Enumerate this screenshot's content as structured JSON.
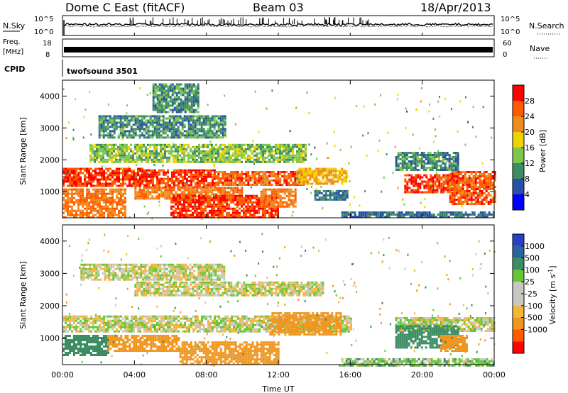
{
  "header": {
    "site": "Dome C East (fitACF)",
    "beam": "Beam 03",
    "date": "18/Apr/2013"
  },
  "sky_panel": {
    "left_label": "N.Sky",
    "right_label": "N.Search",
    "left_ticks": [
      "10^5",
      "10^0"
    ],
    "right_ticks": [
      "10^5",
      "10^0"
    ]
  },
  "freq_panel": {
    "left_label_1": "Freq.",
    "left_label_2": "[MHz]",
    "right_label": "Nave",
    "left_ticks": [
      "18",
      "8"
    ],
    "right_ticks": [
      "60",
      "0"
    ],
    "cpid_label": "CPID",
    "cpid_value": "twofsound 3501"
  },
  "x_axis": {
    "label": "Time UT",
    "ticks": [
      "00:00",
      "04:00",
      "08:00",
      "12:00",
      "16:00",
      "20:00",
      "00:00"
    ]
  },
  "colors": {
    "power_scale": [
      "#0000ff",
      "#2850a8",
      "#3c8c64",
      "#7cc84a",
      "#f0d200",
      "#f08c1e",
      "#ff5a00",
      "#ff0000"
    ],
    "velocity_scale": [
      "#ff0000",
      "#ff5a00",
      "#f0961e",
      "#f5b43c",
      "#c8c8c0",
      "#c8c8c0",
      "#64c832",
      "#3c8c64",
      "#2864a0",
      "#2840c8"
    ]
  },
  "chart_data": [
    {
      "type": "heatmap",
      "title": "",
      "xlabel": "",
      "ylabel": "Slant Range [km]",
      "yticks": [
        1000,
        2000,
        3000,
        4000
      ],
      "colorbar": {
        "label": "Power [dB]",
        "ticks": [
          "28",
          "24",
          "20",
          "16",
          "12",
          "8",
          "4"
        ]
      },
      "x_range_hours": [
        0,
        24
      ],
      "y_range_km": [
        180,
        4500
      ],
      "regions": [
        {
          "t0": 0.0,
          "t1": 4.5,
          "r0": 1150,
          "r1": 1750,
          "power": 28
        },
        {
          "t0": 0.0,
          "t1": 3.5,
          "r0": 200,
          "r1": 1100,
          "power": 24
        },
        {
          "t0": 4.5,
          "t1": 8.5,
          "r0": 1150,
          "r1": 1700,
          "power": 28
        },
        {
          "t0": 4.0,
          "t1": 10.0,
          "r0": 800,
          "r1": 1150,
          "power": 24
        },
        {
          "t0": 6.0,
          "t1": 12.0,
          "r0": 200,
          "r1": 900,
          "power": 28
        },
        {
          "t0": 8.5,
          "t1": 13.5,
          "r0": 1200,
          "r1": 1650,
          "power": 26
        },
        {
          "t0": 11.0,
          "t1": 13.0,
          "r0": 500,
          "r1": 1100,
          "power": 24
        },
        {
          "t0": 13.0,
          "t1": 15.8,
          "r0": 1250,
          "r1": 1750,
          "power": 20
        },
        {
          "t0": 1.5,
          "t1": 13.5,
          "r0": 1900,
          "r1": 2500,
          "power": 14
        },
        {
          "t0": 2.0,
          "t1": 9.0,
          "r0": 2700,
          "r1": 3400,
          "power": 10
        },
        {
          "t0": 5.0,
          "t1": 7.5,
          "r0": 3500,
          "r1": 4400,
          "power": 10
        },
        {
          "t0": 19.0,
          "t1": 22.0,
          "r0": 1000,
          "r1": 1550,
          "power": 28
        },
        {
          "t0": 21.5,
          "t1": 24.0,
          "r0": 600,
          "r1": 1650,
          "power": 26
        },
        {
          "t0": 18.5,
          "t1": 22.0,
          "r0": 1650,
          "r1": 2250,
          "power": 10
        },
        {
          "t0": 14.0,
          "t1": 15.8,
          "r0": 750,
          "r1": 1050,
          "power": 8
        },
        {
          "t0": 15.5,
          "t1": 24.0,
          "r0": 180,
          "r1": 380,
          "power": 8
        }
      ]
    },
    {
      "type": "heatmap",
      "title": "",
      "xlabel": "Time UT",
      "ylabel": "Slant Range [km]",
      "yticks": [
        1000,
        2000,
        3000,
        4000
      ],
      "colorbar": {
        "label": "Velocity [m s^-1]",
        "ticks": [
          "1000",
          "500",
          "100",
          "25",
          "-25",
          "-100",
          "-500",
          "-1000"
        ]
      },
      "x_range_hours": [
        0,
        24
      ],
      "y_range_km": [
        180,
        4500
      ],
      "regions": [
        {
          "t0": 0.0,
          "t1": 16.0,
          "r0": 1200,
          "r1": 1700,
          "velocity": 0
        },
        {
          "t0": 0.0,
          "t1": 2.5,
          "r0": 500,
          "r1": 1100,
          "velocity": 200
        },
        {
          "t0": 2.5,
          "t1": 6.5,
          "r0": 600,
          "r1": 1100,
          "velocity": -200
        },
        {
          "t0": 6.5,
          "t1": 12.0,
          "r0": 200,
          "r1": 900,
          "velocity": -300
        },
        {
          "t0": 11.5,
          "t1": 15.5,
          "r0": 1100,
          "r1": 1800,
          "velocity": -250
        },
        {
          "t0": 4.0,
          "t1": 14.5,
          "r0": 2300,
          "r1": 2750,
          "velocity": 0
        },
        {
          "t0": 1.0,
          "t1": 9.0,
          "r0": 2800,
          "r1": 3300,
          "velocity": 0
        },
        {
          "t0": 18.5,
          "t1": 24.0,
          "r0": 1200,
          "r1": 1650,
          "velocity": 0
        },
        {
          "t0": 18.5,
          "t1": 22.0,
          "r0": 700,
          "r1": 1400,
          "velocity": 300
        },
        {
          "t0": 21.0,
          "t1": 22.5,
          "r0": 600,
          "r1": 1100,
          "velocity": -250
        },
        {
          "t0": 15.5,
          "t1": 24.0,
          "r0": 180,
          "r1": 380,
          "velocity": 50
        }
      ]
    }
  ]
}
